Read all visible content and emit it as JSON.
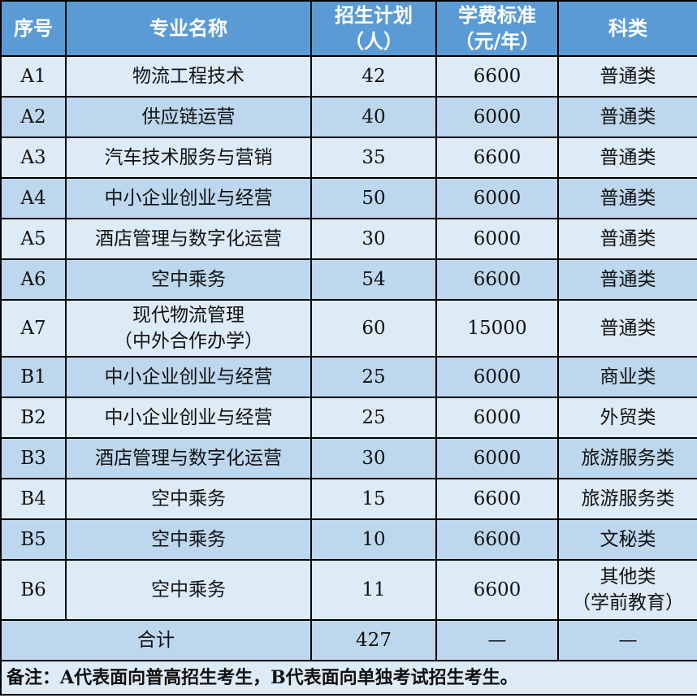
{
  "headers": [
    "序号",
    "专业名称",
    "招生计划\n（人）",
    "学费标准\n（元/年）",
    "科类"
  ],
  "header_lines": [
    [
      "序号"
    ],
    [
      "专业名称"
    ],
    [
      "招生计划",
      "（人）"
    ],
    [
      "学费标准",
      "（元/年）"
    ],
    [
      "科类"
    ]
  ],
  "rows": [
    {
      "id": "A1",
      "major": [
        "物流工程技术"
      ],
      "plan": "42",
      "fee": "6600",
      "category": [
        "普通类"
      ]
    },
    {
      "id": "A2",
      "major": [
        "供应链运营"
      ],
      "plan": "40",
      "fee": "6000",
      "category": [
        "普通类"
      ]
    },
    {
      "id": "A3",
      "major": [
        "汽车技术服务与营销"
      ],
      "plan": "35",
      "fee": "6600",
      "category": [
        "普通类"
      ]
    },
    {
      "id": "A4",
      "major": [
        "中小企业创业与经营"
      ],
      "plan": "50",
      "fee": "6000",
      "category": [
        "普通类"
      ]
    },
    {
      "id": "A5",
      "major": [
        "酒店管理与数字化运营"
      ],
      "plan": "30",
      "fee": "6000",
      "category": [
        "普通类"
      ]
    },
    {
      "id": "A6",
      "major": [
        "空中乘务"
      ],
      "plan": "54",
      "fee": "6600",
      "category": [
        "普通类"
      ]
    },
    {
      "id": "A7",
      "major": [
        "现代物流管理",
        "（中外合作办学）"
      ],
      "plan": "60",
      "fee": "15000",
      "category": [
        "普通类"
      ]
    },
    {
      "id": "B1",
      "major": [
        "中小企业创业与经营"
      ],
      "plan": "25",
      "fee": "6000",
      "category": [
        "商业类"
      ]
    },
    {
      "id": "B2",
      "major": [
        "中小企业创业与经营"
      ],
      "plan": "25",
      "fee": "6000",
      "category": [
        "外贸类"
      ]
    },
    {
      "id": "B3",
      "major": [
        "酒店管理与数字化运营"
      ],
      "plan": "30",
      "fee": "6000",
      "category": [
        "旅游服务类"
      ]
    },
    {
      "id": "B4",
      "major": [
        "空中乘务"
      ],
      "plan": "15",
      "fee": "6600",
      "category": [
        "旅游服务类"
      ]
    },
    {
      "id": "B5",
      "major": [
        "空中乘务"
      ],
      "plan": "10",
      "fee": "6600",
      "category": [
        "文秘类"
      ]
    },
    {
      "id": "B6",
      "major": [
        "空中乘务"
      ],
      "plan": "11",
      "fee": "6600",
      "category": [
        "其他类",
        "（学前教育）"
      ]
    }
  ],
  "total": {
    "label": "合计",
    "plan": "427",
    "fee": "—",
    "category": "—"
  },
  "note": "备注：A代表面向普高招生考生，B代表面向单独考试招生考生。",
  "colors": {
    "header": "#5b9bd5",
    "row_light": "#ddebf7",
    "row_dark": "#bdd7ee"
  }
}
